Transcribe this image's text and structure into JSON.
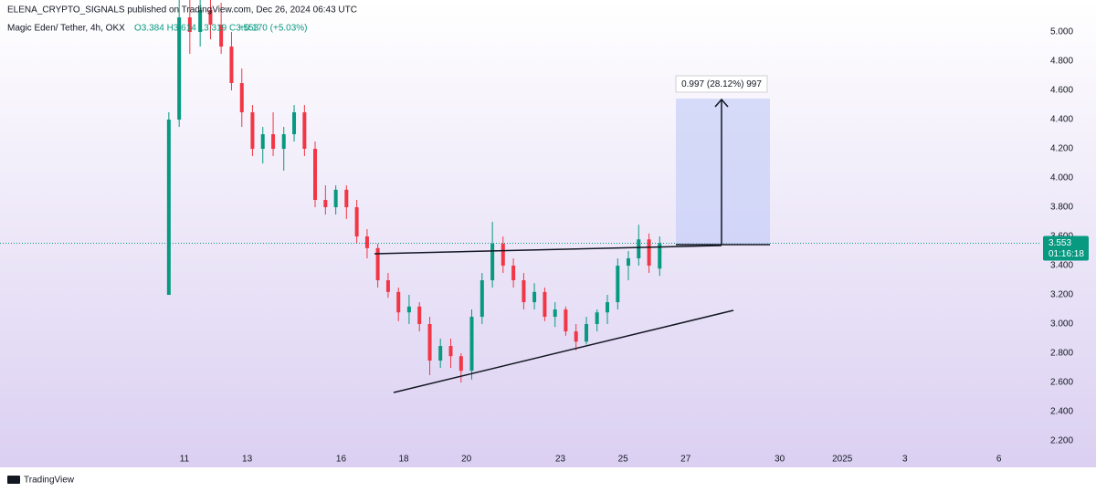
{
  "header": {
    "publisher": "ELENA_CRYPTO_SIGNALS published on TradingView.com, Dec 26, 2024 06:43 UTC",
    "symbol": "Magic Eden/ Tether, 4h, OKX",
    "ohlc": "O3.384 H3.614 L3.319 C3.553",
    "change": "+0.170 (+5.03%)"
  },
  "footer": {
    "brand": "TradingView"
  },
  "measure": {
    "label": "0.997 (28.12%) 997"
  },
  "chart_data": {
    "type": "candlestick",
    "x": [
      10.5,
      10.83,
      11.17,
      11.5,
      11.83,
      12.17,
      12.5,
      12.83,
      13.17,
      13.5,
      13.83,
      14.17,
      14.5,
      14.83,
      15.17,
      15.5,
      15.83,
      16.17,
      16.5,
      16.83,
      17.17,
      17.5,
      17.83,
      18.17,
      18.5,
      18.83,
      19.17,
      19.5,
      19.83,
      20.17,
      20.5,
      20.83,
      21.17,
      21.5,
      21.83,
      22.17,
      22.5,
      22.83,
      23.17,
      23.5,
      23.83,
      24.17,
      24.5,
      24.83,
      25.17,
      25.5,
      25.83,
      26.17
    ],
    "open": [
      3.2,
      4.4,
      5.1,
      5.0,
      5.15,
      5.05,
      4.9,
      4.65,
      4.45,
      4.2,
      4.3,
      4.2,
      4.3,
      4.45,
      4.2,
      3.85,
      3.8,
      3.92,
      3.8,
      3.6,
      3.52,
      3.3,
      3.22,
      3.08,
      3.12,
      3.0,
      2.75,
      2.85,
      2.78,
      2.68,
      3.05,
      3.3,
      3.55,
      3.4,
      3.3,
      3.15,
      3.22,
      3.05,
      3.1,
      2.95,
      2.88,
      3.0,
      3.08,
      3.15,
      3.4,
      3.45,
      3.58,
      3.38
    ],
    "high": [
      4.45,
      5.22,
      5.22,
      5.22,
      5.22,
      5.2,
      5.0,
      4.75,
      4.5,
      4.35,
      4.45,
      4.35,
      4.5,
      4.5,
      4.25,
      3.95,
      3.95,
      3.95,
      3.85,
      3.65,
      3.55,
      3.35,
      3.25,
      3.2,
      3.15,
      3.05,
      2.9,
      2.9,
      2.8,
      3.1,
      3.35,
      3.7,
      3.6,
      3.45,
      3.35,
      3.28,
      3.25,
      3.15,
      3.12,
      3.0,
      3.05,
      3.1,
      3.2,
      3.45,
      3.5,
      3.68,
      3.62,
      3.6
    ],
    "low": [
      3.2,
      4.35,
      4.85,
      4.9,
      4.95,
      4.85,
      4.6,
      4.35,
      4.15,
      4.1,
      4.15,
      4.05,
      4.25,
      4.15,
      3.8,
      3.75,
      3.75,
      3.72,
      3.55,
      3.45,
      3.25,
      3.18,
      3.02,
      3.0,
      2.95,
      2.65,
      2.7,
      2.7,
      2.6,
      2.62,
      3.0,
      3.25,
      3.35,
      3.25,
      3.1,
      3.1,
      3.02,
      2.98,
      2.92,
      2.82,
      2.86,
      2.95,
      3.0,
      3.1,
      3.3,
      3.4,
      3.35,
      3.33
    ],
    "close": [
      4.4,
      5.1,
      5.0,
      5.15,
      5.05,
      4.9,
      4.65,
      4.45,
      4.2,
      4.3,
      4.2,
      4.3,
      4.45,
      4.2,
      3.85,
      3.8,
      3.92,
      3.8,
      3.6,
      3.52,
      3.3,
      3.22,
      3.08,
      3.12,
      3.0,
      2.75,
      2.85,
      2.78,
      2.68,
      3.05,
      3.3,
      3.55,
      3.4,
      3.3,
      3.15,
      3.22,
      3.05,
      3.1,
      2.95,
      2.88,
      3.0,
      3.08,
      3.15,
      3.4,
      3.45,
      3.58,
      3.4,
      3.553
    ],
    "up_color": "#089981",
    "down_color": "#f23645",
    "last_price": {
      "value": 3.553,
      "label": "3.553"
    },
    "countdown": "01:16:18",
    "xlim": [
      5.11,
      38.35
    ],
    "xticks": [
      11,
      13,
      16,
      18,
      20,
      23,
      25,
      27,
      30,
      {
        "value": 32,
        "label": "2025"
      },
      {
        "value": 34,
        "label": "3"
      },
      {
        "value": 37,
        "label": "6"
      }
    ],
    "ylim": [
      2.019,
      5.219
    ],
    "yticks": [
      {
        "value": 2.2,
        "label": "2.200"
      },
      {
        "value": 2.4,
        "label": "2.400"
      },
      {
        "value": 2.6,
        "label": "2.600"
      },
      {
        "value": 2.8,
        "label": "2.800"
      },
      {
        "value": 3.0,
        "label": "3.000"
      },
      {
        "value": 3.2,
        "label": "3.200"
      },
      {
        "value": 3.4,
        "label": "3.400"
      },
      {
        "value": 3.6,
        "label": "3.600"
      },
      {
        "value": 3.8,
        "label": "3.800"
      },
      {
        "value": 4.0,
        "label": "4.000"
      },
      {
        "value": 4.2,
        "label": "4.200"
      },
      {
        "value": 4.4,
        "label": "4.400"
      },
      {
        "value": 4.6,
        "label": "4.600"
      },
      {
        "value": 4.8,
        "label": "4.800"
      },
      {
        "value": 5.0,
        "label": "5.000"
      }
    ]
  }
}
